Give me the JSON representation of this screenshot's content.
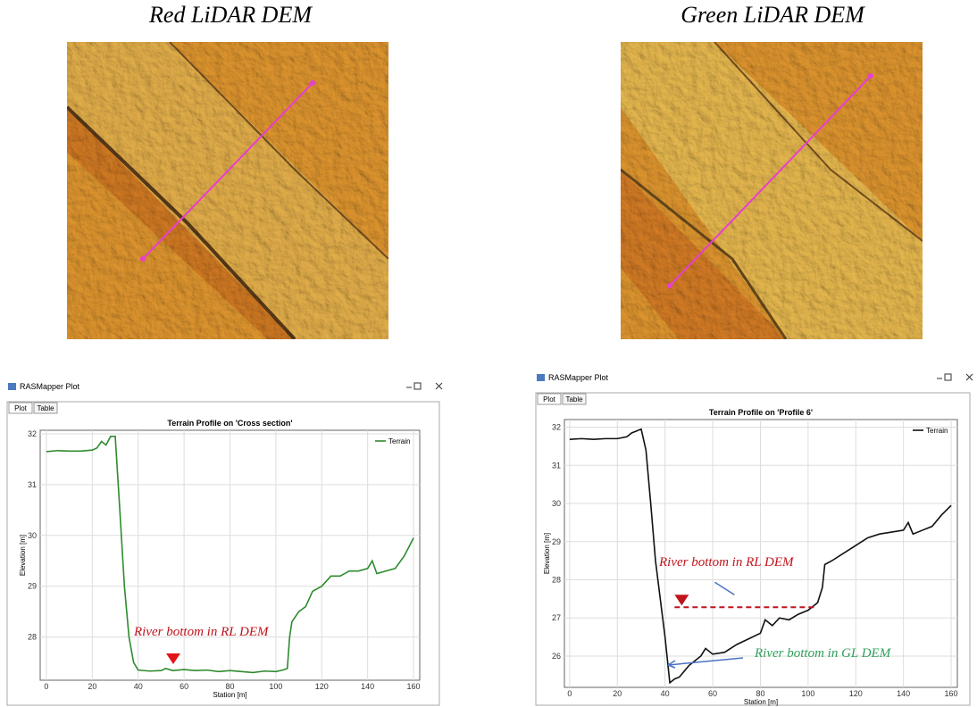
{
  "images": [
    {
      "title": "Red LiDAR DEM"
    },
    {
      "title": "Green LiDAR DEM"
    }
  ],
  "windows": [
    {
      "title": "RASMapper Plot",
      "tabs": [
        "Plot",
        "Table"
      ]
    },
    {
      "title": "RASMapper Plot",
      "tabs": [
        "Plot",
        "Table"
      ]
    }
  ],
  "chart_data": [
    {
      "type": "line",
      "title": "Terrain Profile on 'Cross section'",
      "x_label": "Station [m]",
      "y_label": "Elevation [m]",
      "x": [
        0,
        5,
        10,
        15,
        20,
        22,
        24,
        26,
        28,
        30,
        32,
        34,
        36,
        38,
        40,
        45,
        50,
        52,
        55,
        60,
        65,
        70,
        75,
        80,
        85,
        90,
        95,
        100,
        103,
        105,
        106,
        107,
        110,
        113,
        116,
        120,
        124,
        128,
        132,
        136,
        140,
        142,
        144,
        148,
        152,
        156,
        160
      ],
      "series": [
        {
          "name": "Terrain",
          "color": "#2e8b2e",
          "values": [
            31.65,
            31.67,
            31.66,
            31.66,
            31.68,
            31.72,
            31.85,
            31.78,
            31.95,
            31.95,
            30.5,
            29.0,
            28.0,
            27.5,
            27.35,
            27.33,
            27.34,
            27.38,
            27.34,
            27.36,
            27.34,
            27.35,
            27.32,
            27.34,
            27.32,
            27.3,
            27.33,
            27.32,
            27.35,
            27.38,
            28.0,
            28.3,
            28.5,
            28.6,
            28.9,
            29.0,
            29.2,
            29.2,
            29.3,
            29.3,
            29.35,
            29.5,
            29.25,
            29.3,
            29.35,
            29.6,
            29.95
          ]
        }
      ],
      "xlim": [
        -2.7,
        162.7
      ],
      "xticks": [
        0,
        20,
        40,
        60,
        80,
        100,
        120,
        140,
        160
      ],
      "ylim": [
        27.15,
        32.07
      ],
      "yticks": [
        28,
        29,
        30,
        31,
        32
      ],
      "grid": true,
      "legend": "upper right",
      "annotations": [
        {
          "text": "River bottom in RL DEM",
          "color": "#c0141c"
        }
      ]
    },
    {
      "type": "line",
      "title": "Terrain Profile on 'Profile 6'",
      "x_label": "Station [m]",
      "y_label": "Elevation [m]",
      "x": [
        0,
        5,
        10,
        15,
        20,
        24,
        26,
        28,
        30,
        32,
        34,
        36,
        38,
        40,
        42,
        44,
        46,
        48,
        50,
        52,
        55,
        57,
        60,
        65,
        70,
        75,
        80,
        82,
        85,
        88,
        92,
        96,
        100,
        104,
        106,
        107,
        110,
        115,
        120,
        125,
        130,
        135,
        140,
        142,
        144,
        148,
        152,
        156,
        160
      ],
      "series": [
        {
          "name": "Terrain",
          "color": "#111111",
          "values": [
            31.68,
            31.7,
            31.68,
            31.7,
            31.7,
            31.75,
            31.85,
            31.9,
            31.95,
            31.4,
            30.0,
            28.5,
            27.5,
            26.5,
            25.3,
            25.4,
            25.45,
            25.6,
            25.75,
            25.85,
            26.0,
            26.2,
            26.05,
            26.1,
            26.3,
            26.45,
            26.6,
            26.95,
            26.8,
            27.0,
            26.95,
            27.1,
            27.2,
            27.4,
            27.8,
            28.4,
            28.5,
            28.7,
            28.9,
            29.1,
            29.2,
            29.25,
            29.3,
            29.5,
            29.2,
            29.3,
            29.4,
            29.7,
            29.95
          ]
        }
      ],
      "hline": {
        "value": 27.28,
        "xmin": 44,
        "xmax": 103,
        "color": "#c0141c"
      },
      "xlim": [
        -2.2,
        162.6
      ],
      "xticks": [
        0,
        20,
        40,
        60,
        80,
        100,
        120,
        140,
        160
      ],
      "ylim": [
        25.18,
        32.2
      ],
      "yticks": [
        26,
        27,
        28,
        29,
        30,
        31,
        32
      ],
      "grid": true,
      "legend": "upper right",
      "annotations": [
        {
          "text": "River bottom in RL DEM",
          "color": "#c0141c"
        },
        {
          "text": "River bottom in GL DEM",
          "color": "#2ea05a"
        }
      ]
    }
  ]
}
